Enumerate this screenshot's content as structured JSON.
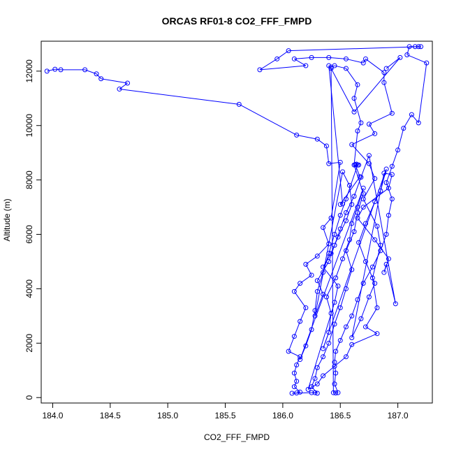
{
  "chart_data": {
    "type": "scatter",
    "title": "ORCAS RF01-8 CO2_FFF_FMPD",
    "xlabel": "CO2_FFF_FMPD",
    "ylabel": "Altitude (m)",
    "xlim": [
      183.9,
      187.3
    ],
    "ylim": [
      -200,
      13100
    ],
    "xticks": [
      "184.0",
      "184.5",
      "185.0",
      "185.5",
      "186.0",
      "186.5",
      "187.0"
    ],
    "yticks": [
      "0",
      "2000",
      "4000",
      "6000",
      "8000",
      "10000",
      "12000"
    ],
    "grid": false,
    "legend": "none",
    "marker": "open-circle",
    "series": [
      {
        "color": "#0000ff",
        "points": [
          [
            183.95,
            12000
          ],
          [
            184.02,
            12070
          ],
          [
            184.07,
            12050
          ],
          [
            184.28,
            12050
          ],
          [
            184.38,
            11900
          ],
          [
            184.42,
            11720
          ],
          [
            184.65,
            11560
          ],
          [
            184.58,
            11340
          ],
          [
            185.62,
            10780
          ],
          [
            186.12,
            9650
          ],
          [
            186.3,
            9500
          ],
          [
            186.38,
            9250
          ],
          [
            186.4,
            8600
          ],
          [
            186.5,
            8650
          ],
          [
            186.42,
            6600
          ],
          [
            186.35,
            6250
          ],
          [
            186.4,
            5650
          ],
          [
            186.3,
            5200
          ],
          [
            186.2,
            4900
          ],
          [
            186.25,
            4500
          ],
          [
            186.15,
            4200
          ],
          [
            186.1,
            3900
          ],
          [
            186.2,
            3300
          ],
          [
            186.15,
            2800
          ],
          [
            186.1,
            2250
          ],
          [
            186.05,
            1700
          ],
          [
            186.15,
            1500
          ],
          [
            186.12,
            1200
          ],
          [
            186.1,
            900
          ],
          [
            186.12,
            600
          ],
          [
            186.1,
            400
          ],
          [
            186.15,
            200
          ],
          [
            186.12,
            170
          ],
          [
            186.08,
            160
          ],
          [
            186.25,
            180
          ],
          [
            186.28,
            180
          ],
          [
            186.3,
            160
          ],
          [
            186.25,
            400
          ],
          [
            186.28,
            700
          ],
          [
            186.3,
            1100
          ],
          [
            186.35,
            1500
          ],
          [
            186.4,
            2000
          ],
          [
            186.45,
            2700
          ],
          [
            186.5,
            3300
          ],
          [
            186.55,
            4000
          ],
          [
            186.6,
            4700
          ],
          [
            186.55,
            5400
          ],
          [
            186.62,
            6100
          ],
          [
            186.65,
            6800
          ],
          [
            186.7,
            7500
          ],
          [
            186.62,
            8550
          ],
          [
            186.65,
            9800
          ],
          [
            186.68,
            10100
          ],
          [
            186.62,
            11000
          ],
          [
            186.65,
            11500
          ],
          [
            186.55,
            12100
          ],
          [
            186.45,
            12200
          ],
          [
            186.42,
            12150
          ],
          [
            186.44,
            180
          ],
          [
            186.46,
            170
          ],
          [
            186.48,
            180
          ],
          [
            186.45,
            500
          ],
          [
            186.46,
            900
          ],
          [
            186.45,
            1300
          ],
          [
            186.46,
            1700
          ],
          [
            186.5,
            2100
          ],
          [
            186.55,
            2600
          ],
          [
            186.6,
            3000
          ],
          [
            186.65,
            3600
          ],
          [
            186.7,
            4200
          ],
          [
            186.78,
            4800
          ],
          [
            186.85,
            5400
          ],
          [
            186.9,
            6000
          ],
          [
            186.92,
            6700
          ],
          [
            186.95,
            7300
          ],
          [
            186.9,
            7900
          ],
          [
            186.95,
            8500
          ],
          [
            187.0,
            9100
          ],
          [
            187.05,
            9900
          ],
          [
            187.12,
            10400
          ],
          [
            187.18,
            10100
          ],
          [
            187.25,
            12300
          ],
          [
            187.08,
            12600
          ],
          [
            187.1,
            12900
          ],
          [
            187.15,
            12900
          ],
          [
            187.18,
            12900
          ],
          [
            187.2,
            12900
          ],
          [
            186.05,
            12750
          ],
          [
            185.95,
            12450
          ],
          [
            185.8,
            12050
          ],
          [
            186.2,
            12200
          ],
          [
            186.1,
            12450
          ],
          [
            186.25,
            12500
          ],
          [
            186.4,
            12500
          ],
          [
            186.55,
            12450
          ],
          [
            186.7,
            12300
          ],
          [
            186.72,
            12450
          ],
          [
            186.88,
            11950
          ],
          [
            186.88,
            11580
          ],
          [
            186.95,
            10450
          ],
          [
            186.75,
            10050
          ],
          [
            186.8,
            9700
          ],
          [
            186.6,
            9300
          ],
          [
            186.75,
            8600
          ],
          [
            186.8,
            8050
          ],
          [
            186.7,
            7300
          ],
          [
            186.82,
            6300
          ],
          [
            186.85,
            5600
          ],
          [
            186.78,
            4400
          ],
          [
            186.82,
            3300
          ],
          [
            186.72,
            2600
          ],
          [
            186.82,
            2350
          ],
          [
            186.6,
            1950
          ],
          [
            186.55,
            1500
          ],
          [
            186.45,
            1150
          ],
          [
            186.35,
            800
          ],
          [
            186.3,
            500
          ],
          [
            186.22,
            300
          ],
          [
            186.45,
            3500
          ],
          [
            186.48,
            4100
          ],
          [
            186.35,
            4800
          ],
          [
            186.42,
            5300
          ],
          [
            186.48,
            5900
          ],
          [
            186.55,
            6500
          ],
          [
            186.6,
            7100
          ],
          [
            186.58,
            7800
          ],
          [
            186.52,
            8300
          ],
          [
            186.28,
            3000
          ],
          [
            186.35,
            3800
          ],
          [
            186.3,
            4300
          ],
          [
            186.4,
            5000
          ],
          [
            186.45,
            5600
          ],
          [
            186.5,
            6200
          ],
          [
            186.55,
            6800
          ],
          [
            186.62,
            7400
          ],
          [
            186.68,
            8100
          ],
          [
            186.75,
            8900
          ],
          [
            186.98,
            3450
          ],
          [
            186.9,
            4900
          ],
          [
            186.88,
            4600
          ],
          [
            186.92,
            5100
          ],
          [
            186.8,
            5800
          ],
          [
            186.65,
            6600
          ],
          [
            186.7,
            7000
          ],
          [
            186.92,
            7700
          ],
          [
            186.95,
            8200
          ],
          [
            186.88,
            8250
          ],
          [
            186.6,
            2200
          ],
          [
            186.68,
            2900
          ],
          [
            186.75,
            3700
          ],
          [
            186.8,
            4200
          ],
          [
            186.72,
            5000
          ],
          [
            186.66,
            5700
          ],
          [
            186.72,
            6400
          ],
          [
            186.8,
            7200
          ],
          [
            186.85,
            7600
          ],
          [
            186.9,
            8400
          ],
          [
            186.35,
            1800
          ],
          [
            186.4,
            2400
          ],
          [
            186.42,
            3100
          ],
          [
            186.38,
            3700
          ],
          [
            186.46,
            4400
          ],
          [
            186.52,
            5100
          ],
          [
            186.58,
            5800
          ],
          [
            186.6,
            6400
          ],
          [
            186.65,
            7000
          ],
          [
            186.7,
            7700
          ],
          [
            186.15,
            1400
          ],
          [
            186.2,
            1900
          ],
          [
            186.25,
            2500
          ],
          [
            186.28,
            3200
          ],
          [
            186.3,
            3900
          ],
          [
            186.35,
            4600
          ],
          [
            186.4,
            5300
          ],
          [
            186.45,
            6000
          ],
          [
            186.5,
            6700
          ],
          [
            186.55,
            7300
          ],
          [
            186.65,
            8550
          ],
          [
            186.66,
            8550
          ],
          [
            186.64,
            8580
          ],
          [
            186.63,
            8560
          ],
          [
            186.67,
            8120
          ],
          [
            186.5,
            7100
          ],
          [
            186.52,
            7120
          ],
          [
            186.4,
            12200
          ],
          [
            186.42,
            12100
          ],
          [
            186.62,
            10500
          ],
          [
            187.02,
            12500
          ],
          [
            186.9,
            12100
          ]
        ]
      }
    ]
  }
}
